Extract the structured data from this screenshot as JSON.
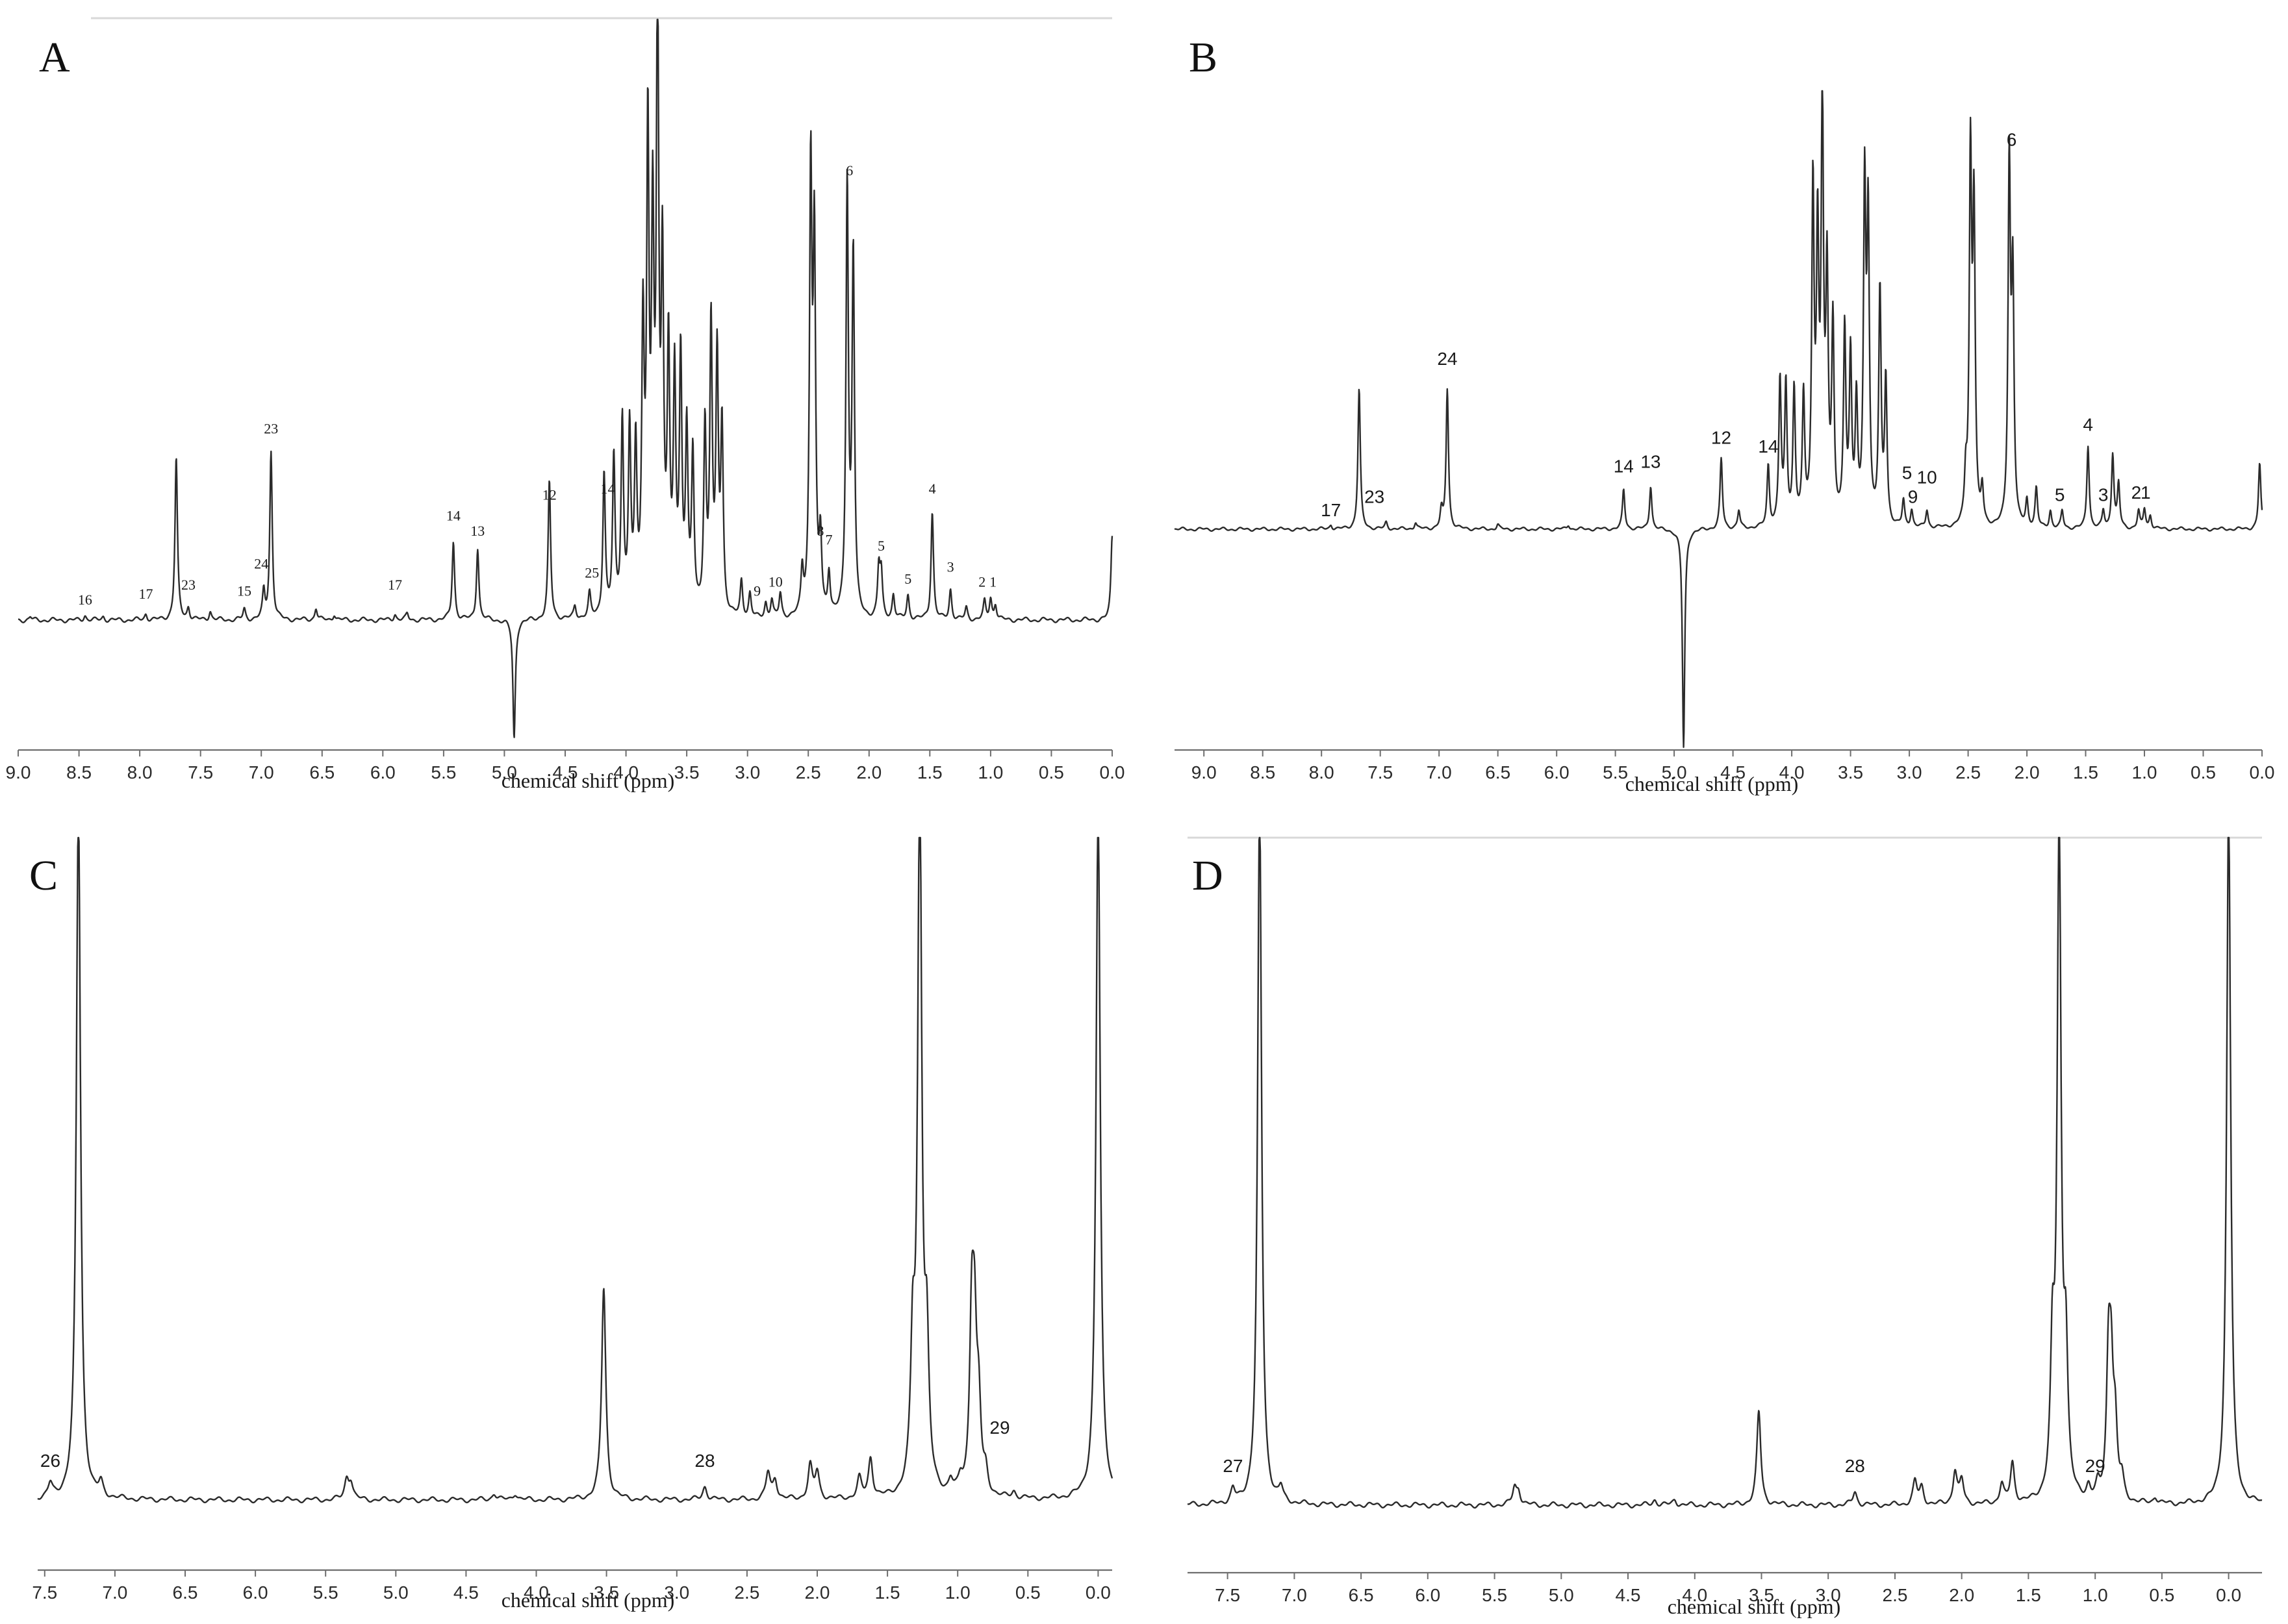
{
  "chart_data": [
    {
      "panel": "A",
      "type": "line",
      "xlabel": "chemical shift (ppm)",
      "xlim": [
        9.0,
        0.0
      ],
      "x_reversed": true,
      "xticks": [
        "9.0",
        "8.5",
        "8.0",
        "7.5",
        "7.0",
        "6.5",
        "6.0",
        "5.5",
        "5.0",
        "4.5",
        "4.0",
        "3.5",
        "3.0",
        "2.5",
        "2.0",
        "1.5",
        "1.0",
        "0.5",
        "0.0"
      ],
      "ylim": [
        -0.25,
        1.0
      ],
      "grid": false,
      "peaks": [
        {
          "x": 8.9,
          "y": 0.005
        },
        {
          "x": 8.45,
          "y": 0.008
        },
        {
          "x": 8.3,
          "y": 0.006
        },
        {
          "x": 7.95,
          "y": 0.01
        },
        {
          "x": 7.7,
          "y": 0.27
        },
        {
          "x": 7.6,
          "y": 0.02
        },
        {
          "x": 7.42,
          "y": 0.015
        },
        {
          "x": 7.14,
          "y": 0.018
        },
        {
          "x": 6.98,
          "y": 0.045
        },
        {
          "x": 6.92,
          "y": 0.28
        },
        {
          "x": 6.55,
          "y": 0.02
        },
        {
          "x": 6.4,
          "y": 0.01
        },
        {
          "x": 5.9,
          "y": 0.01
        },
        {
          "x": 5.8,
          "y": 0.01
        },
        {
          "x": 5.42,
          "y": 0.13
        },
        {
          "x": 5.22,
          "y": 0.12
        },
        {
          "x": 4.92,
          "y": -0.2
        },
        {
          "x": 4.63,
          "y": 0.23
        },
        {
          "x": 4.42,
          "y": 0.02
        },
        {
          "x": 4.3,
          "y": 0.04
        },
        {
          "x": 4.18,
          "y": 0.24
        },
        {
          "x": 4.1,
          "y": 0.26
        },
        {
          "x": 4.03,
          "y": 0.32
        },
        {
          "x": 3.97,
          "y": 0.3
        },
        {
          "x": 3.92,
          "y": 0.27
        },
        {
          "x": 3.86,
          "y": 0.46
        },
        {
          "x": 3.82,
          "y": 0.77
        },
        {
          "x": 3.78,
          "y": 0.6
        },
        {
          "x": 3.74,
          "y": 1.0
        },
        {
          "x": 3.7,
          "y": 0.55
        },
        {
          "x": 3.65,
          "y": 0.43
        },
        {
          "x": 3.6,
          "y": 0.38
        },
        {
          "x": 3.55,
          "y": 0.42
        },
        {
          "x": 3.5,
          "y": 0.3
        },
        {
          "x": 3.45,
          "y": 0.26
        },
        {
          "x": 3.35,
          "y": 0.31
        },
        {
          "x": 3.3,
          "y": 0.48
        },
        {
          "x": 3.25,
          "y": 0.42
        },
        {
          "x": 3.21,
          "y": 0.31
        },
        {
          "x": 3.05,
          "y": 0.06
        },
        {
          "x": 2.98,
          "y": 0.04
        },
        {
          "x": 2.85,
          "y": 0.025
        },
        {
          "x": 2.8,
          "y": 0.03
        },
        {
          "x": 2.73,
          "y": 0.04
        },
        {
          "x": 2.55,
          "y": 0.07
        },
        {
          "x": 2.48,
          "y": 0.73
        },
        {
          "x": 2.45,
          "y": 0.6
        },
        {
          "x": 2.4,
          "y": 0.12
        },
        {
          "x": 2.33,
          "y": 0.07
        },
        {
          "x": 2.18,
          "y": 0.72
        },
        {
          "x": 2.13,
          "y": 0.6
        },
        {
          "x": 1.92,
          "y": 0.08
        },
        {
          "x": 1.9,
          "y": 0.07
        },
        {
          "x": 1.8,
          "y": 0.04
        },
        {
          "x": 1.68,
          "y": 0.04
        },
        {
          "x": 1.48,
          "y": 0.18
        },
        {
          "x": 1.33,
          "y": 0.05
        },
        {
          "x": 1.2,
          "y": 0.02
        },
        {
          "x": 1.05,
          "y": 0.03
        },
        {
          "x": 1.0,
          "y": 0.035
        },
        {
          "x": 0.96,
          "y": 0.025
        },
        {
          "x": 0.0,
          "y": 0.14
        }
      ],
      "annotations": [
        {
          "text": "16",
          "x": 8.45,
          "y": 0.015
        },
        {
          "text": "17",
          "x": 7.95,
          "y": 0.025
        },
        {
          "text": "23",
          "x": 7.6,
          "y": 0.04
        },
        {
          "text": "15",
          "x": 7.14,
          "y": 0.03
        },
        {
          "text": "24",
          "x": 7.0,
          "y": 0.075
        },
        {
          "text": "23",
          "x": 6.92,
          "y": 0.3
        },
        {
          "text": "17",
          "x": 5.9,
          "y": 0.04
        },
        {
          "text": "14",
          "x": 5.42,
          "y": 0.155
        },
        {
          "text": "13",
          "x": 5.22,
          "y": 0.13
        },
        {
          "text": "12",
          "x": 4.63,
          "y": 0.19
        },
        {
          "text": "25",
          "x": 4.28,
          "y": 0.06
        },
        {
          "text": "14",
          "x": 4.15,
          "y": 0.2
        },
        {
          "text": "9",
          "x": 2.92,
          "y": 0.03
        },
        {
          "text": "10",
          "x": 2.77,
          "y": 0.045
        },
        {
          "text": "8",
          "x": 2.4,
          "y": 0.13
        },
        {
          "text": "7",
          "x": 2.33,
          "y": 0.115
        },
        {
          "text": "6",
          "x": 2.16,
          "y": 0.73
        },
        {
          "text": "5",
          "x": 1.9,
          "y": 0.105
        },
        {
          "text": "5",
          "x": 1.68,
          "y": 0.05
        },
        {
          "text": "4",
          "x": 1.48,
          "y": 0.2
        },
        {
          "text": "3",
          "x": 1.33,
          "y": 0.07
        },
        {
          "text": "2",
          "x": 1.07,
          "y": 0.045
        },
        {
          "text": "1",
          "x": 0.98,
          "y": 0.045
        }
      ]
    },
    {
      "panel": "B",
      "type": "line",
      "xlabel": "chemical shift (ppm)",
      "xlim": [
        9.25,
        0.0
      ],
      "x_reversed": true,
      "xticks": [
        "9.0",
        "8.5",
        "8.0",
        "7.5",
        "7.0",
        "6.5",
        "6.0",
        "5.5",
        "5.0",
        "4.5",
        "4.0",
        "3.5",
        "3.0",
        "2.5",
        "2.0",
        "1.5",
        "1.0",
        "0.5",
        "0.0"
      ],
      "ylim": [
        -0.45,
        1.0
      ],
      "grid": false,
      "peaks": [
        {
          "x": 7.92,
          "y": 0.01
        },
        {
          "x": 7.68,
          "y": 0.32
        },
        {
          "x": 7.45,
          "y": 0.015
        },
        {
          "x": 7.2,
          "y": 0.015
        },
        {
          "x": 6.98,
          "y": 0.04
        },
        {
          "x": 6.93,
          "y": 0.32
        },
        {
          "x": 6.5,
          "y": 0.01
        },
        {
          "x": 5.9,
          "y": 0.01
        },
        {
          "x": 5.43,
          "y": 0.09
        },
        {
          "x": 5.2,
          "y": 0.1
        },
        {
          "x": 4.92,
          "y": -0.5
        },
        {
          "x": 4.6,
          "y": 0.16
        },
        {
          "x": 4.45,
          "y": 0.04
        },
        {
          "x": 4.2,
          "y": 0.14
        },
        {
          "x": 4.1,
          "y": 0.33
        },
        {
          "x": 4.05,
          "y": 0.32
        },
        {
          "x": 3.98,
          "y": 0.31
        },
        {
          "x": 3.9,
          "y": 0.29
        },
        {
          "x": 3.82,
          "y": 0.76
        },
        {
          "x": 3.78,
          "y": 0.62
        },
        {
          "x": 3.74,
          "y": 0.93
        },
        {
          "x": 3.7,
          "y": 0.55
        },
        {
          "x": 3.65,
          "y": 0.45
        },
        {
          "x": 3.55,
          "y": 0.44
        },
        {
          "x": 3.5,
          "y": 0.38
        },
        {
          "x": 3.45,
          "y": 0.27
        },
        {
          "x": 3.38,
          "y": 0.75
        },
        {
          "x": 3.35,
          "y": 0.68
        },
        {
          "x": 3.25,
          "y": 0.53
        },
        {
          "x": 3.2,
          "y": 0.33
        },
        {
          "x": 3.05,
          "y": 0.06
        },
        {
          "x": 2.98,
          "y": 0.04
        },
        {
          "x": 2.85,
          "y": 0.04
        },
        {
          "x": 2.52,
          "y": 0.1
        },
        {
          "x": 2.48,
          "y": 0.83
        },
        {
          "x": 2.45,
          "y": 0.7
        },
        {
          "x": 2.38,
          "y": 0.08
        },
        {
          "x": 2.15,
          "y": 0.82
        },
        {
          "x": 2.12,
          "y": 0.55
        },
        {
          "x": 2.0,
          "y": 0.06
        },
        {
          "x": 1.92,
          "y": 0.09
        },
        {
          "x": 1.8,
          "y": 0.04
        },
        {
          "x": 1.7,
          "y": 0.04
        },
        {
          "x": 1.48,
          "y": 0.19
        },
        {
          "x": 1.35,
          "y": 0.04
        },
        {
          "x": 1.27,
          "y": 0.17
        },
        {
          "x": 1.22,
          "y": 0.1
        },
        {
          "x": 1.05,
          "y": 0.04
        },
        {
          "x": 1.0,
          "y": 0.045
        },
        {
          "x": 0.95,
          "y": 0.03
        },
        {
          "x": 0.02,
          "y": 0.15
        }
      ],
      "annotations": [
        {
          "text": "17",
          "x": 7.92,
          "y": 0.015
        },
        {
          "text": "23",
          "x": 7.55,
          "y": 0.045
        },
        {
          "text": "24",
          "x": 6.93,
          "y": 0.36
        },
        {
          "text": "14",
          "x": 5.43,
          "y": 0.115
        },
        {
          "text": "13",
          "x": 5.2,
          "y": 0.125
        },
        {
          "text": "12",
          "x": 4.6,
          "y": 0.18
        },
        {
          "text": "14",
          "x": 4.2,
          "y": 0.16
        },
        {
          "text": "5",
          "x": 3.02,
          "y": 0.1
        },
        {
          "text": "9",
          "x": 2.97,
          "y": 0.045
        },
        {
          "text": "10",
          "x": 2.85,
          "y": 0.09
        },
        {
          "text": "6",
          "x": 2.13,
          "y": 0.86
        },
        {
          "text": "5",
          "x": 1.72,
          "y": 0.05
        },
        {
          "text": "4",
          "x": 1.48,
          "y": 0.21
        },
        {
          "text": "3",
          "x": 1.35,
          "y": 0.05
        },
        {
          "text": "2",
          "x": 1.07,
          "y": 0.055
        },
        {
          "text": "1",
          "x": 0.99,
          "y": 0.055
        }
      ]
    },
    {
      "panel": "C",
      "type": "line",
      "xlabel": "chemical shift (ppm)",
      "xlim": [
        7.55,
        -0.1
      ],
      "x_reversed": true,
      "xticks": [
        "7.5",
        "7.0",
        "6.5",
        "6.0",
        "5.5",
        "5.0",
        "4.5",
        "4.0",
        "3.5",
        "3.0",
        "2.5",
        "2.0",
        "1.5",
        "1.0",
        "0.5",
        "0.0"
      ],
      "ylim": [
        -0.1,
        1.0
      ],
      "grid": false,
      "peaks": [
        {
          "x": 7.46,
          "y": 0.02
        },
        {
          "x": 7.26,
          "y": 1.05
        },
        {
          "x": 7.1,
          "y": 0.02
        },
        {
          "x": 5.35,
          "y": 0.03
        },
        {
          "x": 5.32,
          "y": 0.025
        },
        {
          "x": 4.3,
          "y": 0.01
        },
        {
          "x": 4.15,
          "y": 0.01
        },
        {
          "x": 3.52,
          "y": 0.32
        },
        {
          "x": 2.8,
          "y": 0.02
        },
        {
          "x": 2.35,
          "y": 0.04
        },
        {
          "x": 2.3,
          "y": 0.03
        },
        {
          "x": 2.05,
          "y": 0.05
        },
        {
          "x": 2.0,
          "y": 0.04
        },
        {
          "x": 1.7,
          "y": 0.03
        },
        {
          "x": 1.62,
          "y": 0.06
        },
        {
          "x": 1.32,
          "y": 0.2
        },
        {
          "x": 1.27,
          "y": 1.05
        },
        {
          "x": 1.22,
          "y": 0.2
        },
        {
          "x": 1.05,
          "y": 0.02
        },
        {
          "x": 0.98,
          "y": 0.02
        },
        {
          "x": 0.9,
          "y": 0.25
        },
        {
          "x": 0.88,
          "y": 0.21
        },
        {
          "x": 0.85,
          "y": 0.12
        },
        {
          "x": 0.8,
          "y": 0.03
        },
        {
          "x": 0.6,
          "y": 0.01
        },
        {
          "x": 0.0,
          "y": 1.05
        }
      ],
      "annotations": [
        {
          "text": "26",
          "x": 7.46,
          "y": 0.04
        },
        {
          "text": "28",
          "x": 2.8,
          "y": 0.04
        },
        {
          "text": "29",
          "x": 0.7,
          "y": 0.09
        }
      ]
    },
    {
      "panel": "D",
      "type": "line",
      "xlabel": "chemical shift (ppm)",
      "xlim": [
        7.8,
        -0.25
      ],
      "x_reversed": true,
      "xticks": [
        "7.5",
        "7.0",
        "6.5",
        "6.0",
        "5.5",
        "5.0",
        "4.5",
        "4.0",
        "3.5",
        "3.0",
        "2.5",
        "2.0",
        "1.5",
        "1.0",
        "0.5",
        "0.0"
      ],
      "ylim": [
        -0.1,
        1.0
      ],
      "grid": false,
      "peaks": [
        {
          "x": 7.46,
          "y": 0.02
        },
        {
          "x": 7.26,
          "y": 1.05
        },
        {
          "x": 7.1,
          "y": 0.02
        },
        {
          "x": 5.35,
          "y": 0.025
        },
        {
          "x": 5.32,
          "y": 0.02
        },
        {
          "x": 4.3,
          "y": 0.008
        },
        {
          "x": 4.15,
          "y": 0.008
        },
        {
          "x": 3.52,
          "y": 0.14
        },
        {
          "x": 2.8,
          "y": 0.02
        },
        {
          "x": 2.35,
          "y": 0.035
        },
        {
          "x": 2.3,
          "y": 0.025
        },
        {
          "x": 2.05,
          "y": 0.05
        },
        {
          "x": 2.0,
          "y": 0.035
        },
        {
          "x": 1.7,
          "y": 0.03
        },
        {
          "x": 1.62,
          "y": 0.06
        },
        {
          "x": 1.32,
          "y": 0.2
        },
        {
          "x": 1.27,
          "y": 0.99
        },
        {
          "x": 1.22,
          "y": 0.2
        },
        {
          "x": 1.05,
          "y": 0.02
        },
        {
          "x": 0.98,
          "y": 0.02
        },
        {
          "x": 0.9,
          "y": 0.2
        },
        {
          "x": 0.88,
          "y": 0.17
        },
        {
          "x": 0.85,
          "y": 0.1
        },
        {
          "x": 0.8,
          "y": 0.03
        },
        {
          "x": 0.55,
          "y": 0.01
        },
        {
          "x": 0.0,
          "y": 1.05
        }
      ],
      "annotations": [
        {
          "text": "27",
          "x": 7.46,
          "y": 0.04
        },
        {
          "text": "28",
          "x": 2.8,
          "y": 0.04
        },
        {
          "text": "29",
          "x": 1.0,
          "y": 0.04
        }
      ]
    }
  ]
}
